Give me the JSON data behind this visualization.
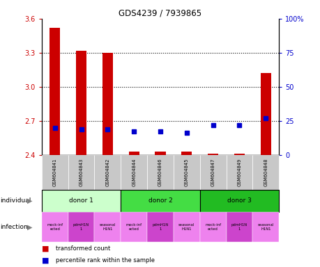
{
  "title": "GDS4239 / 7939865",
  "samples": [
    "GSM604841",
    "GSM604843",
    "GSM604842",
    "GSM604844",
    "GSM604846",
    "GSM604845",
    "GSM604847",
    "GSM604849",
    "GSM604848"
  ],
  "red_values": [
    3.52,
    3.32,
    3.3,
    2.43,
    2.43,
    2.43,
    2.41,
    2.41,
    3.12
  ],
  "blue_values": [
    20,
    19,
    19,
    17,
    17,
    16,
    22,
    22,
    27
  ],
  "ylim_left": [
    2.4,
    3.6
  ],
  "ylim_right": [
    0,
    100
  ],
  "yticks_left": [
    2.4,
    2.7,
    3.0,
    3.3,
    3.6
  ],
  "yticks_right": [
    0,
    25,
    50,
    75,
    100
  ],
  "donors": [
    {
      "label": "donor 1",
      "start": 0,
      "end": 3,
      "color": "#CCFFCC"
    },
    {
      "label": "donor 2",
      "start": 3,
      "end": 6,
      "color": "#44DD44"
    },
    {
      "label": "donor 3",
      "start": 6,
      "end": 9,
      "color": "#22BB22"
    }
  ],
  "infection_colors": [
    "#EE82EE",
    "#CC44CC",
    "#EE82EE",
    "#EE82EE",
    "#CC44CC",
    "#EE82EE",
    "#EE82EE",
    "#CC44CC",
    "#EE82EE"
  ],
  "infection_labels": [
    "mock-inf\nected",
    "pdmH1N\n1",
    "seasonal\nH1N1",
    "mock-inf\nected",
    "pdmH1N\n1",
    "seasonal\nH1N1",
    "mock-inf\nected",
    "pdmH1N\n1",
    "seasonal\nH1N1"
  ],
  "bar_color": "#CC0000",
  "dot_color": "#0000CC",
  "sample_bg": "#C8C8C8",
  "tick_color_left": "#CC0000",
  "tick_color_right": "#0000CC"
}
